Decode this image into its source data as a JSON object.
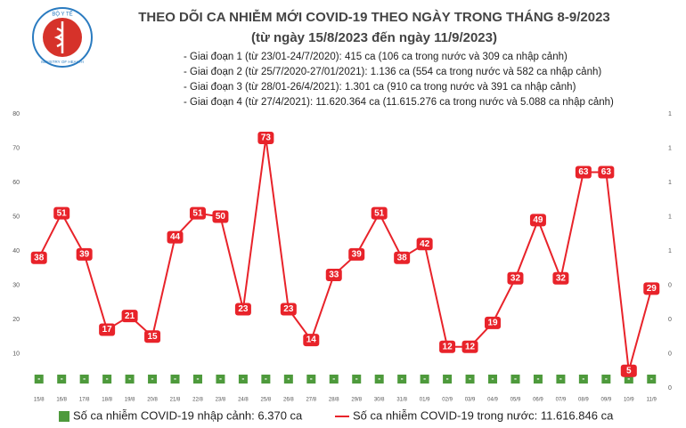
{
  "logo": {
    "top": "BỘ Y TẾ",
    "bottom": "MINISTRY OF HEALTH"
  },
  "chart_data": {
    "type": "combo",
    "title": "THEO DÕI CA NHIỄM MỚI COVID-19 THEO NGÀY TRONG THÁNG 8-9/2023",
    "subtitle": "(từ ngày 15/8/2023 đến ngày 11/9/2023)",
    "annotations": [
      "- Giai đoạn 1 (từ 23/01-24/7/2020): 415 ca (106 ca trong nước và 309 ca nhập cảnh)",
      "- Giai đoạn 2 (từ 25/7/2020-27/01/2021): 1.136 ca (554 ca trong nước và 582 ca nhập cảnh)",
      "- Giai đoạn 3 (từ 28/01-26/4/2021): 1.301 ca (910 ca trong nước và 391 ca nhập cảnh)",
      "- Giai đoạn 4 (từ 27/4/2021): 11.620.364 ca (11.615.276 ca trong nước và 5.088 ca nhập cảnh)"
    ],
    "categories": [
      "15/8",
      "16/8",
      "17/8",
      "18/8",
      "19/8",
      "20/8",
      "21/8",
      "22/8",
      "23/8",
      "24/8",
      "25/8",
      "26/8",
      "27/8",
      "28/8",
      "29/8",
      "30/8",
      "31/8",
      "01/9",
      "02/9",
      "03/9",
      "04/9",
      "05/9",
      "06/9",
      "07/9",
      "08/9",
      "09/9",
      "10/9",
      "11/9"
    ],
    "series": [
      {
        "name": "Số ca nhiễm COVID-19 nhập cảnh: 6.370 ca",
        "type": "bar",
        "axis": "y2",
        "color": "#4e9a3c",
        "values": [
          0,
          0,
          0,
          0,
          0,
          0,
          0,
          0,
          0,
          0,
          0,
          0,
          0,
          0,
          0,
          0,
          0,
          0,
          0,
          0,
          0,
          0,
          0,
          0,
          0,
          0,
          0,
          0
        ],
        "value_labels": [
          "-",
          "-",
          "-",
          "-",
          "-",
          "-",
          "-",
          "-",
          "-",
          "-",
          "-",
          "-",
          "-",
          "-",
          "-",
          "-",
          "-",
          "-",
          "-",
          "-",
          "-",
          "-",
          "-",
          "-",
          "-",
          "-",
          "-",
          "-"
        ]
      },
      {
        "name": "Số ca nhiễm COVID-19 trong nước: 11.616.846 ca",
        "type": "line",
        "color": "#e8232a",
        "values": [
          38,
          51,
          39,
          17,
          21,
          15,
          44,
          51,
          50,
          23,
          73,
          23,
          14,
          33,
          39,
          51,
          38,
          42,
          12,
          12,
          19,
          32,
          49,
          32,
          63,
          63,
          5,
          29
        ]
      }
    ],
    "ylim": [
      0,
      80
    ],
    "yticks": [
      10,
      20,
      30,
      40,
      50,
      60,
      70,
      80
    ],
    "y2lim": [
      0,
      1
    ],
    "y2ticks": [
      0,
      {
        "value": 0.125,
        "label": "0"
      },
      {
        "value": 0.25,
        "label": "0"
      },
      {
        "value": 0.375,
        "label": "0"
      },
      {
        "value": 0.5,
        "label": "1"
      },
      {
        "value": 0.625,
        "label": "1"
      },
      {
        "value": 0.75,
        "label": "1"
      },
      {
        "value": 0.875,
        "label": "1"
      },
      1
    ],
    "grid": false
  }
}
